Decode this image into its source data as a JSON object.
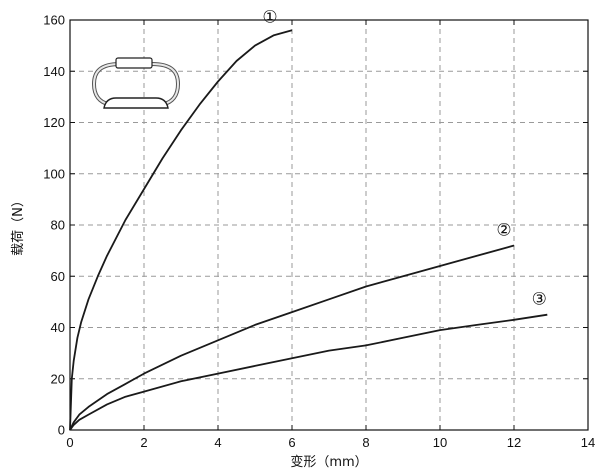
{
  "chart_data": {
    "type": "line",
    "title": "",
    "xlabel": "变形（mm）",
    "ylabel": "载荷（N）",
    "xlim": [
      0,
      14
    ],
    "ylim": [
      0,
      160
    ],
    "xticks": [
      0,
      2,
      4,
      6,
      8,
      10,
      12,
      14
    ],
    "yticks": [
      0,
      20,
      40,
      60,
      80,
      100,
      120,
      140,
      160
    ],
    "grid": true,
    "legend": "none",
    "inset_icon": "ring-clip-icon",
    "series": [
      {
        "marker_label": "①",
        "x": [
          0,
          0.05,
          0.1,
          0.2,
          0.3,
          0.5,
          0.75,
          1.0,
          1.5,
          2.0,
          2.5,
          3.0,
          3.5,
          4.0,
          4.5,
          5.0,
          5.5,
          6.0
        ],
        "y": [
          0,
          20,
          27,
          36,
          42,
          51,
          60,
          68,
          82,
          94,
          106,
          117,
          127,
          136,
          144,
          150,
          154,
          156
        ]
      },
      {
        "marker_label": "②",
        "x": [
          0,
          0.1,
          0.25,
          0.5,
          1,
          1.5,
          2,
          3,
          4,
          5,
          6,
          7,
          8,
          9,
          10,
          11,
          12
        ],
        "y": [
          0,
          3,
          6,
          9,
          14,
          18,
          22,
          29,
          35,
          41,
          46,
          51,
          56,
          60,
          64,
          68,
          72
        ]
      },
      {
        "marker_label": "③",
        "x": [
          0,
          0.1,
          0.25,
          0.5,
          1,
          1.5,
          2,
          3,
          4,
          5,
          6,
          7,
          8,
          9,
          10,
          11,
          12,
          12.9
        ],
        "y": [
          0,
          2,
          4,
          6,
          10,
          13,
          15,
          19,
          22,
          25,
          28,
          31,
          33,
          36,
          39,
          41,
          43,
          45
        ]
      }
    ]
  }
}
